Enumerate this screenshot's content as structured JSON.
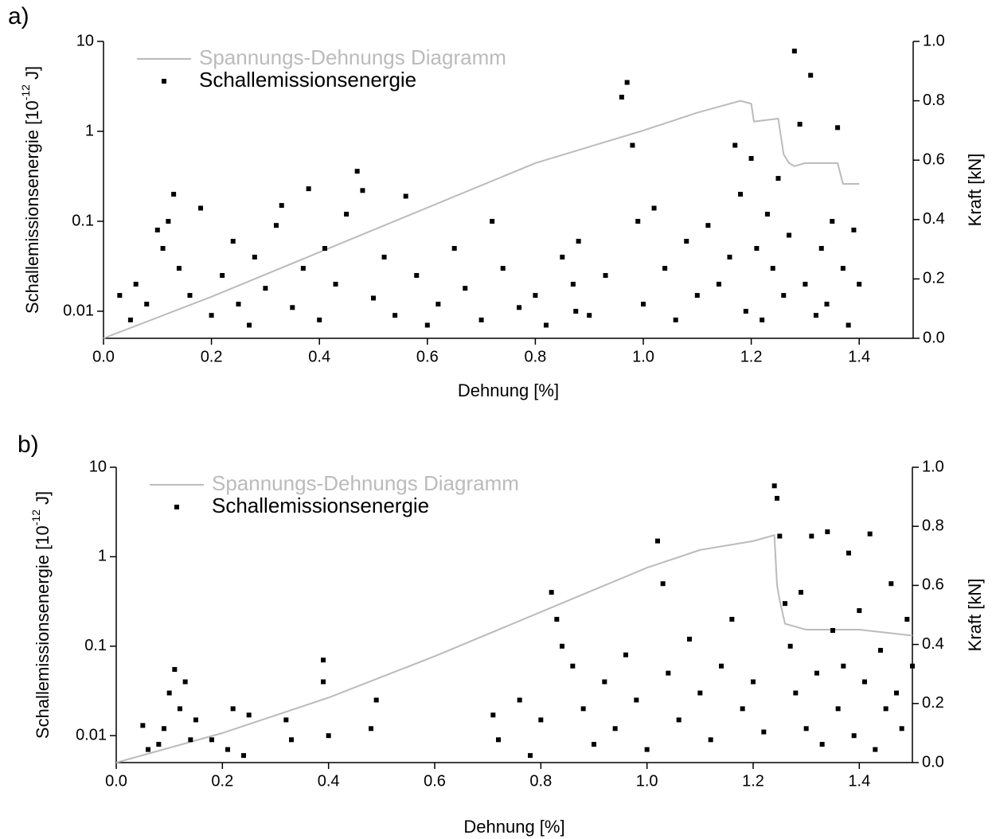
{
  "chart_data": [
    {
      "type": "scatter",
      "panel_label": "a)",
      "x_label": "Dehnung [%]",
      "y_label": [
        "Schallemissionsenergie [10",
        "-12",
        "J]"
      ],
      "y2_label": "Kraft [kN]",
      "xlim": [
        0,
        1.5
      ],
      "xticks": [
        {
          "value": 0,
          "label": "0.0"
        },
        0.2,
        0.4,
        0.6,
        0.8,
        {
          "value": 1,
          "label": "1.0"
        },
        1.2,
        1.4
      ],
      "ylim": [
        0.005,
        10
      ],
      "yticks": [
        0.01,
        0.1,
        1,
        10
      ],
      "log_y": true,
      "y2lim": [
        0,
        1
      ],
      "y2ticks": [
        {
          "value": 0,
          "label": "0.0"
        },
        0.2,
        0.4,
        0.6,
        0.8,
        {
          "value": 1,
          "label": "1.0"
        }
      ],
      "legend": "top-left",
      "series": [
        {
          "name": "Spannungs-Dehnungs Diagramm",
          "type": "line",
          "color": "#bbbbbb",
          "axis": "y2",
          "x": [
            0,
            0.2,
            0.4,
            0.6,
            0.8,
            1.0,
            1.1,
            1.18,
            1.2,
            1.205,
            1.25,
            1.255,
            1.26,
            1.27,
            1.28,
            1.3,
            1.36,
            1.37,
            1.4
          ],
          "values": [
            0,
            0.14,
            0.29,
            0.44,
            0.59,
            0.7,
            0.76,
            0.8,
            0.79,
            0.73,
            0.74,
            0.68,
            0.62,
            0.59,
            0.58,
            0.59,
            0.59,
            0.52,
            0.52
          ]
        },
        {
          "name": "Schallemissionsenergie",
          "type": "scatter",
          "color": "#000000",
          "x": [
            0.03,
            0.05,
            0.06,
            0.08,
            0.1,
            0.11,
            0.12,
            0.13,
            0.14,
            0.16,
            0.18,
            0.2,
            0.22,
            0.24,
            0.25,
            0.27,
            0.28,
            0.3,
            0.32,
            0.33,
            0.35,
            0.37,
            0.38,
            0.4,
            0.41,
            0.43,
            0.45,
            0.47,
            0.48,
            0.5,
            0.52,
            0.54,
            0.56,
            0.58,
            0.6,
            0.62,
            0.65,
            0.67,
            0.7,
            0.72,
            0.74,
            0.77,
            0.8,
            0.82,
            0.85,
            0.87,
            0.875,
            0.88,
            0.9,
            0.93,
            0.96,
            0.97,
            0.98,
            0.99,
            1.0,
            1.02,
            1.04,
            1.06,
            1.08,
            1.1,
            1.12,
            1.14,
            1.16,
            1.17,
            1.18,
            1.19,
            1.2,
            1.21,
            1.22,
            1.23,
            1.24,
            1.25,
            1.26,
            1.27,
            1.28,
            1.29,
            1.3,
            1.31,
            1.32,
            1.33,
            1.34,
            1.35,
            1.36,
            1.37,
            1.38,
            1.39,
            1.4
          ],
          "values": [
            0.015,
            0.008,
            0.02,
            0.012,
            0.08,
            0.05,
            0.1,
            0.2,
            0.03,
            0.015,
            0.14,
            0.009,
            0.025,
            0.06,
            0.012,
            0.007,
            0.04,
            0.018,
            0.09,
            0.15,
            0.011,
            0.03,
            0.23,
            0.008,
            0.05,
            0.02,
            0.12,
            0.36,
            0.22,
            0.014,
            0.04,
            0.009,
            0.19,
            0.025,
            0.007,
            0.012,
            0.05,
            0.018,
            0.008,
            0.1,
            0.03,
            0.011,
            0.015,
            0.007,
            0.04,
            0.02,
            0.01,
            0.06,
            0.009,
            0.025,
            2.4,
            3.5,
            0.7,
            0.1,
            0.012,
            0.14,
            0.03,
            0.008,
            0.06,
            0.015,
            0.09,
            0.02,
            0.04,
            0.7,
            0.2,
            0.01,
            0.5,
            0.05,
            0.008,
            0.12,
            0.03,
            0.3,
            0.015,
            0.07,
            7.8,
            1.2,
            0.02,
            4.2,
            0.009,
            0.05,
            0.012,
            0.1,
            1.1,
            0.03,
            0.007,
            0.08,
            0.02
          ]
        }
      ]
    },
    {
      "type": "scatter",
      "panel_label": "b)",
      "x_label": "Dehnung [%]",
      "y_label": [
        "Schallemissionsenergie [10",
        "-12",
        "J]"
      ],
      "y2_label": "Kraft [kN]",
      "xlim": [
        0,
        1.5
      ],
      "xticks": [
        {
          "value": 0,
          "label": "0.0"
        },
        0.2,
        0.4,
        0.6,
        0.8,
        {
          "value": 1,
          "label": "1.0"
        },
        1.2,
        1.4
      ],
      "ylim": [
        0.005,
        10
      ],
      "yticks": [
        0.01,
        0.1,
        1,
        10
      ],
      "log_y": true,
      "y2lim": [
        0,
        1
      ],
      "y2ticks": [
        {
          "value": 0,
          "label": "0.0"
        },
        0.2,
        0.4,
        0.6,
        0.8,
        {
          "value": 1,
          "label": "1.0"
        }
      ],
      "legend": "top-left",
      "series": [
        {
          "name": "Spannungs-Dehnungs Diagramm",
          "type": "line",
          "color": "#bbbbbb",
          "axis": "y2",
          "x": [
            0,
            0.2,
            0.4,
            0.6,
            0.8,
            1.0,
            1.1,
            1.2,
            1.24,
            1.245,
            1.25,
            1.26,
            1.3,
            1.4,
            1.5
          ],
          "values": [
            0,
            0.1,
            0.22,
            0.36,
            0.51,
            0.66,
            0.72,
            0.75,
            0.77,
            0.6,
            0.55,
            0.47,
            0.45,
            0.45,
            0.43
          ]
        },
        {
          "name": "Schallemissionsenergie",
          "type": "scatter",
          "color": "#000000",
          "x": [
            0.05,
            0.06,
            0.08,
            0.09,
            0.1,
            0.11,
            0.12,
            0.13,
            0.14,
            0.15,
            0.18,
            0.21,
            0.22,
            0.24,
            0.25,
            0.32,
            0.33,
            0.39,
            0.39,
            0.4,
            0.48,
            0.49,
            0.71,
            0.72,
            0.76,
            0.78,
            0.8,
            0.82,
            0.83,
            0.84,
            0.86,
            0.88,
            0.9,
            0.92,
            0.94,
            0.96,
            0.98,
            1.0,
            1.02,
            1.03,
            1.04,
            1.06,
            1.08,
            1.1,
            1.12,
            1.14,
            1.16,
            1.18,
            1.2,
            1.22,
            1.24,
            1.245,
            1.25,
            1.26,
            1.27,
            1.28,
            1.29,
            1.3,
            1.31,
            1.32,
            1.33,
            1.34,
            1.35,
            1.36,
            1.37,
            1.38,
            1.39,
            1.4,
            1.41,
            1.42,
            1.43,
            1.44,
            1.45,
            1.46,
            1.47,
            1.48,
            1.49,
            1.5
          ],
          "values": [
            0.013,
            0.007,
            0.008,
            0.012,
            0.03,
            0.055,
            0.02,
            0.04,
            0.009,
            0.015,
            0.009,
            0.007,
            0.02,
            0.006,
            0.017,
            0.015,
            0.009,
            0.07,
            0.04,
            0.01,
            0.012,
            0.025,
            0.017,
            0.009,
            0.025,
            0.006,
            0.015,
            0.4,
            0.2,
            0.1,
            0.06,
            0.02,
            0.008,
            0.04,
            0.012,
            0.08,
            0.025,
            0.007,
            1.5,
            0.5,
            0.05,
            0.015,
            0.12,
            0.03,
            0.009,
            0.06,
            0.2,
            0.02,
            0.04,
            0.011,
            6.2,
            4.5,
            1.7,
            0.3,
            0.1,
            0.03,
            0.4,
            0.012,
            1.7,
            0.05,
            0.008,
            1.9,
            0.15,
            0.02,
            0.06,
            1.1,
            0.01,
            0.25,
            0.04,
            1.8,
            0.007,
            0.09,
            0.02,
            0.5,
            0.03,
            0.012,
            0.2,
            0.06
          ]
        }
      ]
    }
  ]
}
